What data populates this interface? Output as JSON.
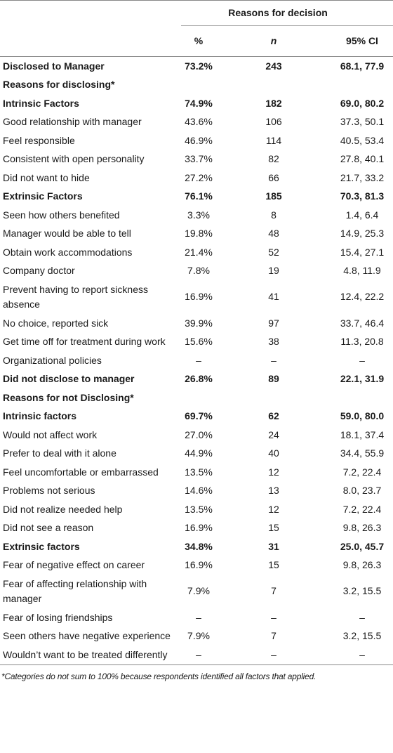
{
  "table": {
    "header": {
      "group": "Reasons for decision",
      "columns": [
        "%",
        "n",
        "95% CI"
      ]
    },
    "rows": [
      {
        "label": "Disclosed to Manager",
        "percent": "73.2%",
        "n": "243",
        "ci": "68.1, 77.9",
        "bold": true
      },
      {
        "label": "Reasons for disclosing*",
        "percent": "",
        "n": "",
        "ci": "",
        "bold": true
      },
      {
        "label": "Intrinsic Factors",
        "percent": "74.9%",
        "n": "182",
        "ci": "69.0, 80.2",
        "bold": true
      },
      {
        "label": "Good relationship with manager",
        "percent": "43.6%",
        "n": "106",
        "ci": "37.3, 50.1",
        "bold": false
      },
      {
        "label": "Feel responsible",
        "percent": "46.9%",
        "n": "114",
        "ci": "40.5, 53.4",
        "bold": false
      },
      {
        "label": "Consistent with open personality",
        "percent": "33.7%",
        "n": "82",
        "ci": "27.8, 40.1",
        "bold": false
      },
      {
        "label": "Did not want to hide",
        "percent": "27.2%",
        "n": "66",
        "ci": "21.7, 33.2",
        "bold": false
      },
      {
        "label": "Extrinsic Factors",
        "percent": "76.1%",
        "n": "185",
        "ci": "70.3, 81.3",
        "bold": true
      },
      {
        "label": "Seen how others benefited",
        "percent": "3.3%",
        "n": "8",
        "ci": "1.4, 6.4",
        "bold": false
      },
      {
        "label": "Manager would be able to tell",
        "percent": "19.8%",
        "n": "48",
        "ci": "14.9, 25.3",
        "bold": false
      },
      {
        "label": "Obtain work accommodations",
        "percent": "21.4%",
        "n": "52",
        "ci": "15.4, 27.1",
        "bold": false
      },
      {
        "label": "Company doctor",
        "percent": "7.8%",
        "n": "19",
        "ci": "4.8, 11.9",
        "bold": false
      },
      {
        "label": "Prevent having to report sickness absence",
        "percent": "16.9%",
        "n": "41",
        "ci": "12.4, 22.2",
        "bold": false
      },
      {
        "label": "No choice, reported sick",
        "percent": "39.9%",
        "n": "97",
        "ci": "33.7, 46.4",
        "bold": false
      },
      {
        "label": "Get time off for treatment during work",
        "percent": "15.6%",
        "n": "38",
        "ci": "11.3, 20.8",
        "bold": false
      },
      {
        "label": "Organizational policies",
        "percent": "–",
        "n": "–",
        "ci": "–",
        "bold": false
      },
      {
        "label": "Did not disclose to manager",
        "percent": "26.8%",
        "n": "89",
        "ci": "22.1, 31.9",
        "bold": true
      },
      {
        "label": "Reasons for not Disclosing*",
        "percent": "",
        "n": "",
        "ci": "",
        "bold": true
      },
      {
        "label": "Intrinsic factors",
        "percent": "69.7%",
        "n": "62",
        "ci": "59.0, 80.0",
        "bold": true
      },
      {
        "label": "Would not affect work",
        "percent": "27.0%",
        "n": "24",
        "ci": "18.1, 37.4",
        "bold": false
      },
      {
        "label": "Prefer to deal with it alone",
        "percent": "44.9%",
        "n": "40",
        "ci": "34.4, 55.9",
        "bold": false
      },
      {
        "label": "Feel uncomfortable or embarrassed",
        "percent": "13.5%",
        "n": "12",
        "ci": "7.2, 22.4",
        "bold": false
      },
      {
        "label": "Problems not serious",
        "percent": "14.6%",
        "n": "13",
        "ci": "8.0, 23.7",
        "bold": false
      },
      {
        "label": "Did not realize needed help",
        "percent": "13.5%",
        "n": "12",
        "ci": "7.2, 22.4",
        "bold": false
      },
      {
        "label": "Did not see a reason",
        "percent": "16.9%",
        "n": "15",
        "ci": "9.8, 26.3",
        "bold": false
      },
      {
        "label": "Extrinsic factors",
        "percent": "34.8%",
        "n": "31",
        "ci": "25.0, 45.7",
        "bold": true
      },
      {
        "label": "Fear of negative effect on career",
        "percent": "16.9%",
        "n": "15",
        "ci": "9.8, 26.3",
        "bold": false
      },
      {
        "label": "Fear of affecting relationship with manager",
        "percent": "7.9%",
        "n": "7",
        "ci": "3.2, 15.5",
        "bold": false
      },
      {
        "label": "Fear of losing friendships",
        "percent": "–",
        "n": "–",
        "ci": "–",
        "bold": false
      },
      {
        "label": "Seen others have negative experience",
        "percent": "7.9%",
        "n": "7",
        "ci": "3.2, 15.5",
        "bold": false
      },
      {
        "label": "Wouldn’t want to be treated differently",
        "percent": "–",
        "n": "–",
        "ci": "–",
        "bold": false
      }
    ],
    "footnote": "*Categories do not sum to 100% because respondents identified all factors that applied."
  }
}
